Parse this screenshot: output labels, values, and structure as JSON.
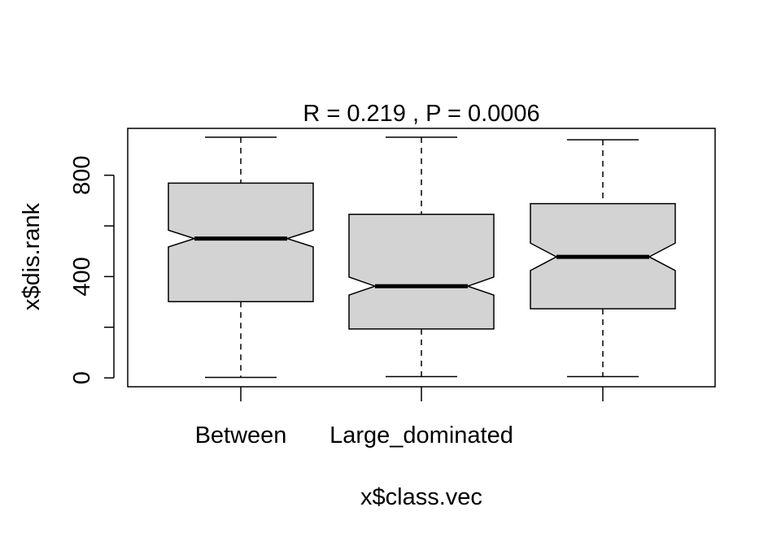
{
  "chart_data": {
    "type": "boxplot",
    "title": "R =  0.219 ,  P =  0.0006",
    "xlabel": "x$class.vec",
    "ylabel": "x$dis.rank",
    "ylim": [
      -35,
      985
    ],
    "y_ticks": [
      0,
      200,
      400,
      600,
      800
    ],
    "y_tick_labels": [
      "0",
      "",
      "400",
      "",
      "800"
    ],
    "categories": [
      "Between",
      "Large_dominated",
      ""
    ],
    "notched": true,
    "box_fill": "#d3d3d3",
    "grid": false,
    "boxes": [
      {
        "label": "Between",
        "whisker_low": 2,
        "q1": 301,
        "median": 550,
        "q3": 769,
        "whisker_high": 950,
        "notch_low": 517,
        "notch_high": 583
      },
      {
        "label": "Large_dominated",
        "whisker_low": 5,
        "q1": 193,
        "median": 362,
        "q3": 646,
        "whisker_high": 950,
        "notch_low": 327,
        "notch_high": 398
      },
      {
        "label": "",
        "whisker_low": 5,
        "q1": 273,
        "median": 478,
        "q3": 688,
        "whisker_high": 940,
        "notch_low": 424,
        "notch_high": 532
      }
    ]
  }
}
